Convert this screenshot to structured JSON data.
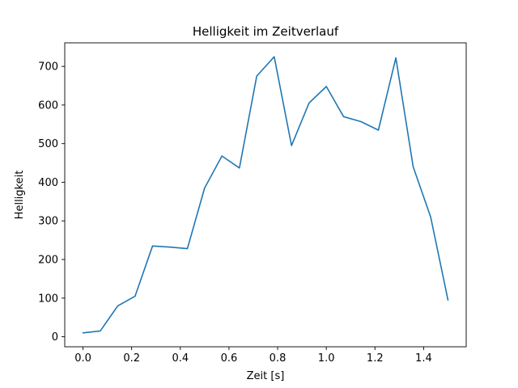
{
  "chart_data": {
    "type": "line",
    "title": "Helligkeit im Zeitverlauf",
    "xlabel": "Zeit [s]",
    "ylabel": "Helligkeit",
    "line_color": "#1f77b4",
    "x": [
      0.0,
      0.071,
      0.143,
      0.214,
      0.286,
      0.357,
      0.429,
      0.5,
      0.571,
      0.643,
      0.714,
      0.786,
      0.857,
      0.929,
      1.0,
      1.071,
      1.143,
      1.214,
      1.286,
      1.357,
      1.429,
      1.5
    ],
    "y": [
      10,
      15,
      80,
      105,
      235,
      232,
      228,
      385,
      468,
      437,
      675,
      725,
      495,
      605,
      648,
      570,
      557,
      535,
      722,
      440,
      310,
      95
    ],
    "xlim": [
      -0.075,
      1.575
    ],
    "ylim": [
      -26,
      761
    ],
    "xticks": [
      0.0,
      0.2,
      0.4,
      0.6,
      0.8,
      1.0,
      1.2,
      1.4
    ],
    "xtick_labels": [
      "0.0",
      "0.2",
      "0.4",
      "0.6",
      "0.8",
      "1.0",
      "1.2",
      "1.4"
    ],
    "yticks": [
      0,
      100,
      200,
      300,
      400,
      500,
      600,
      700
    ],
    "ytick_labels": [
      "0",
      "100",
      "200",
      "300",
      "400",
      "500",
      "600",
      "700"
    ],
    "grid": false,
    "legend": "none"
  }
}
